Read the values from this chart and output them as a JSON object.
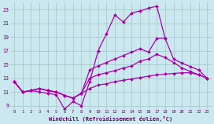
{
  "xlabel": "Windchill (Refroidissement éolien,°C)",
  "bg_color": "#cbe8f0",
  "grid_color": "#a8ccc8",
  "line_color": "#aa00aa",
  "xlim": [
    -0.5,
    23.5
  ],
  "ylim": [
    8.5,
    24.0
  ],
  "xticks": [
    0,
    1,
    2,
    3,
    4,
    5,
    6,
    7,
    8,
    9,
    10,
    11,
    12,
    13,
    14,
    15,
    16,
    17,
    18,
    19,
    20,
    21,
    22,
    23
  ],
  "yticks": [
    9,
    11,
    13,
    15,
    17,
    19,
    21,
    23
  ],
  "line1_y": [
    12.5,
    11.0,
    11.2,
    11.0,
    10.8,
    10.6,
    8.5,
    9.6,
    9.0,
    12.5,
    17.0,
    19.5,
    22.2,
    21.2,
    22.5,
    22.8,
    23.2,
    23.5,
    18.8,
    null,
    null,
    null,
    null,
    null
  ],
  "line2_y": [
    12.5,
    11.0,
    11.2,
    11.5,
    11.2,
    11.0,
    10.5,
    10.1,
    10.8,
    14.2,
    14.8,
    15.3,
    15.8,
    16.3,
    16.8,
    17.3,
    16.8,
    18.8,
    18.8,
    15.8,
    15.2,
    14.7,
    14.2,
    13.0
  ],
  "line3_y": [
    12.5,
    11.0,
    11.2,
    11.5,
    11.2,
    11.0,
    10.5,
    10.1,
    10.8,
    13.0,
    13.5,
    13.8,
    14.1,
    14.5,
    14.8,
    15.5,
    15.8,
    16.5,
    16.0,
    15.3,
    14.5,
    14.0,
    13.5,
    13.0
  ],
  "line4_y": [
    12.5,
    11.0,
    11.2,
    11.5,
    11.2,
    11.0,
    10.5,
    10.1,
    10.8,
    11.5,
    12.0,
    12.2,
    12.5,
    12.7,
    12.9,
    13.1,
    13.3,
    13.5,
    13.6,
    13.7,
    13.8,
    13.8,
    13.5,
    13.0
  ]
}
